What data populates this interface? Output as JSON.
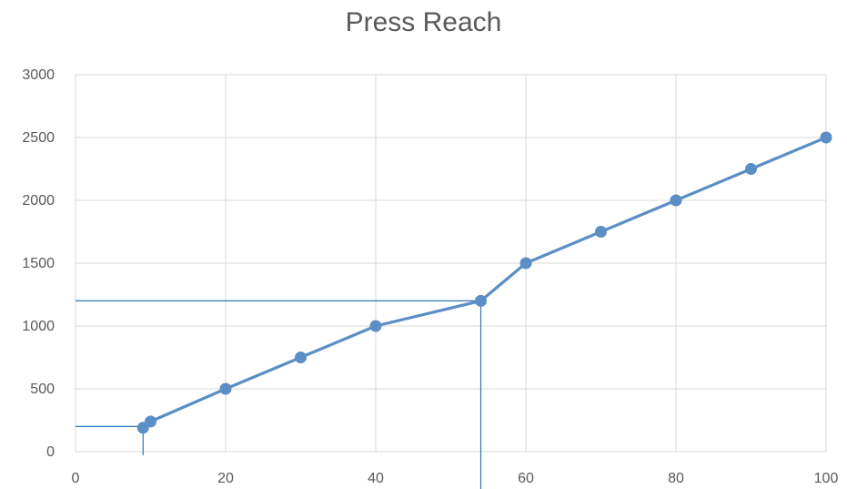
{
  "chart_data": {
    "type": "line",
    "title": "Press Reach",
    "xlabel": "",
    "ylabel": "",
    "xlim": [
      0,
      100
    ],
    "ylim": [
      0,
      3000
    ],
    "x_ticks": [
      0,
      20,
      40,
      60,
      80,
      100
    ],
    "y_ticks": [
      0,
      500,
      1000,
      1500,
      2000,
      2500,
      3000
    ],
    "grid": true,
    "legend": "none",
    "series": [
      {
        "color": "#5b8ec4",
        "x": [
          9,
          10,
          20,
          30,
          40,
          54,
          60,
          70,
          80,
          90,
          100
        ],
        "y": [
          190,
          240,
          500,
          750,
          1000,
          1200,
          1500,
          1750,
          2000,
          2250,
          2500
        ]
      }
    ],
    "reference_lines": [
      {
        "color": "#2e75b6",
        "x": 54,
        "y": 1200
      },
      {
        "color": "#2e75b6",
        "x": 9,
        "y": 200
      }
    ]
  }
}
